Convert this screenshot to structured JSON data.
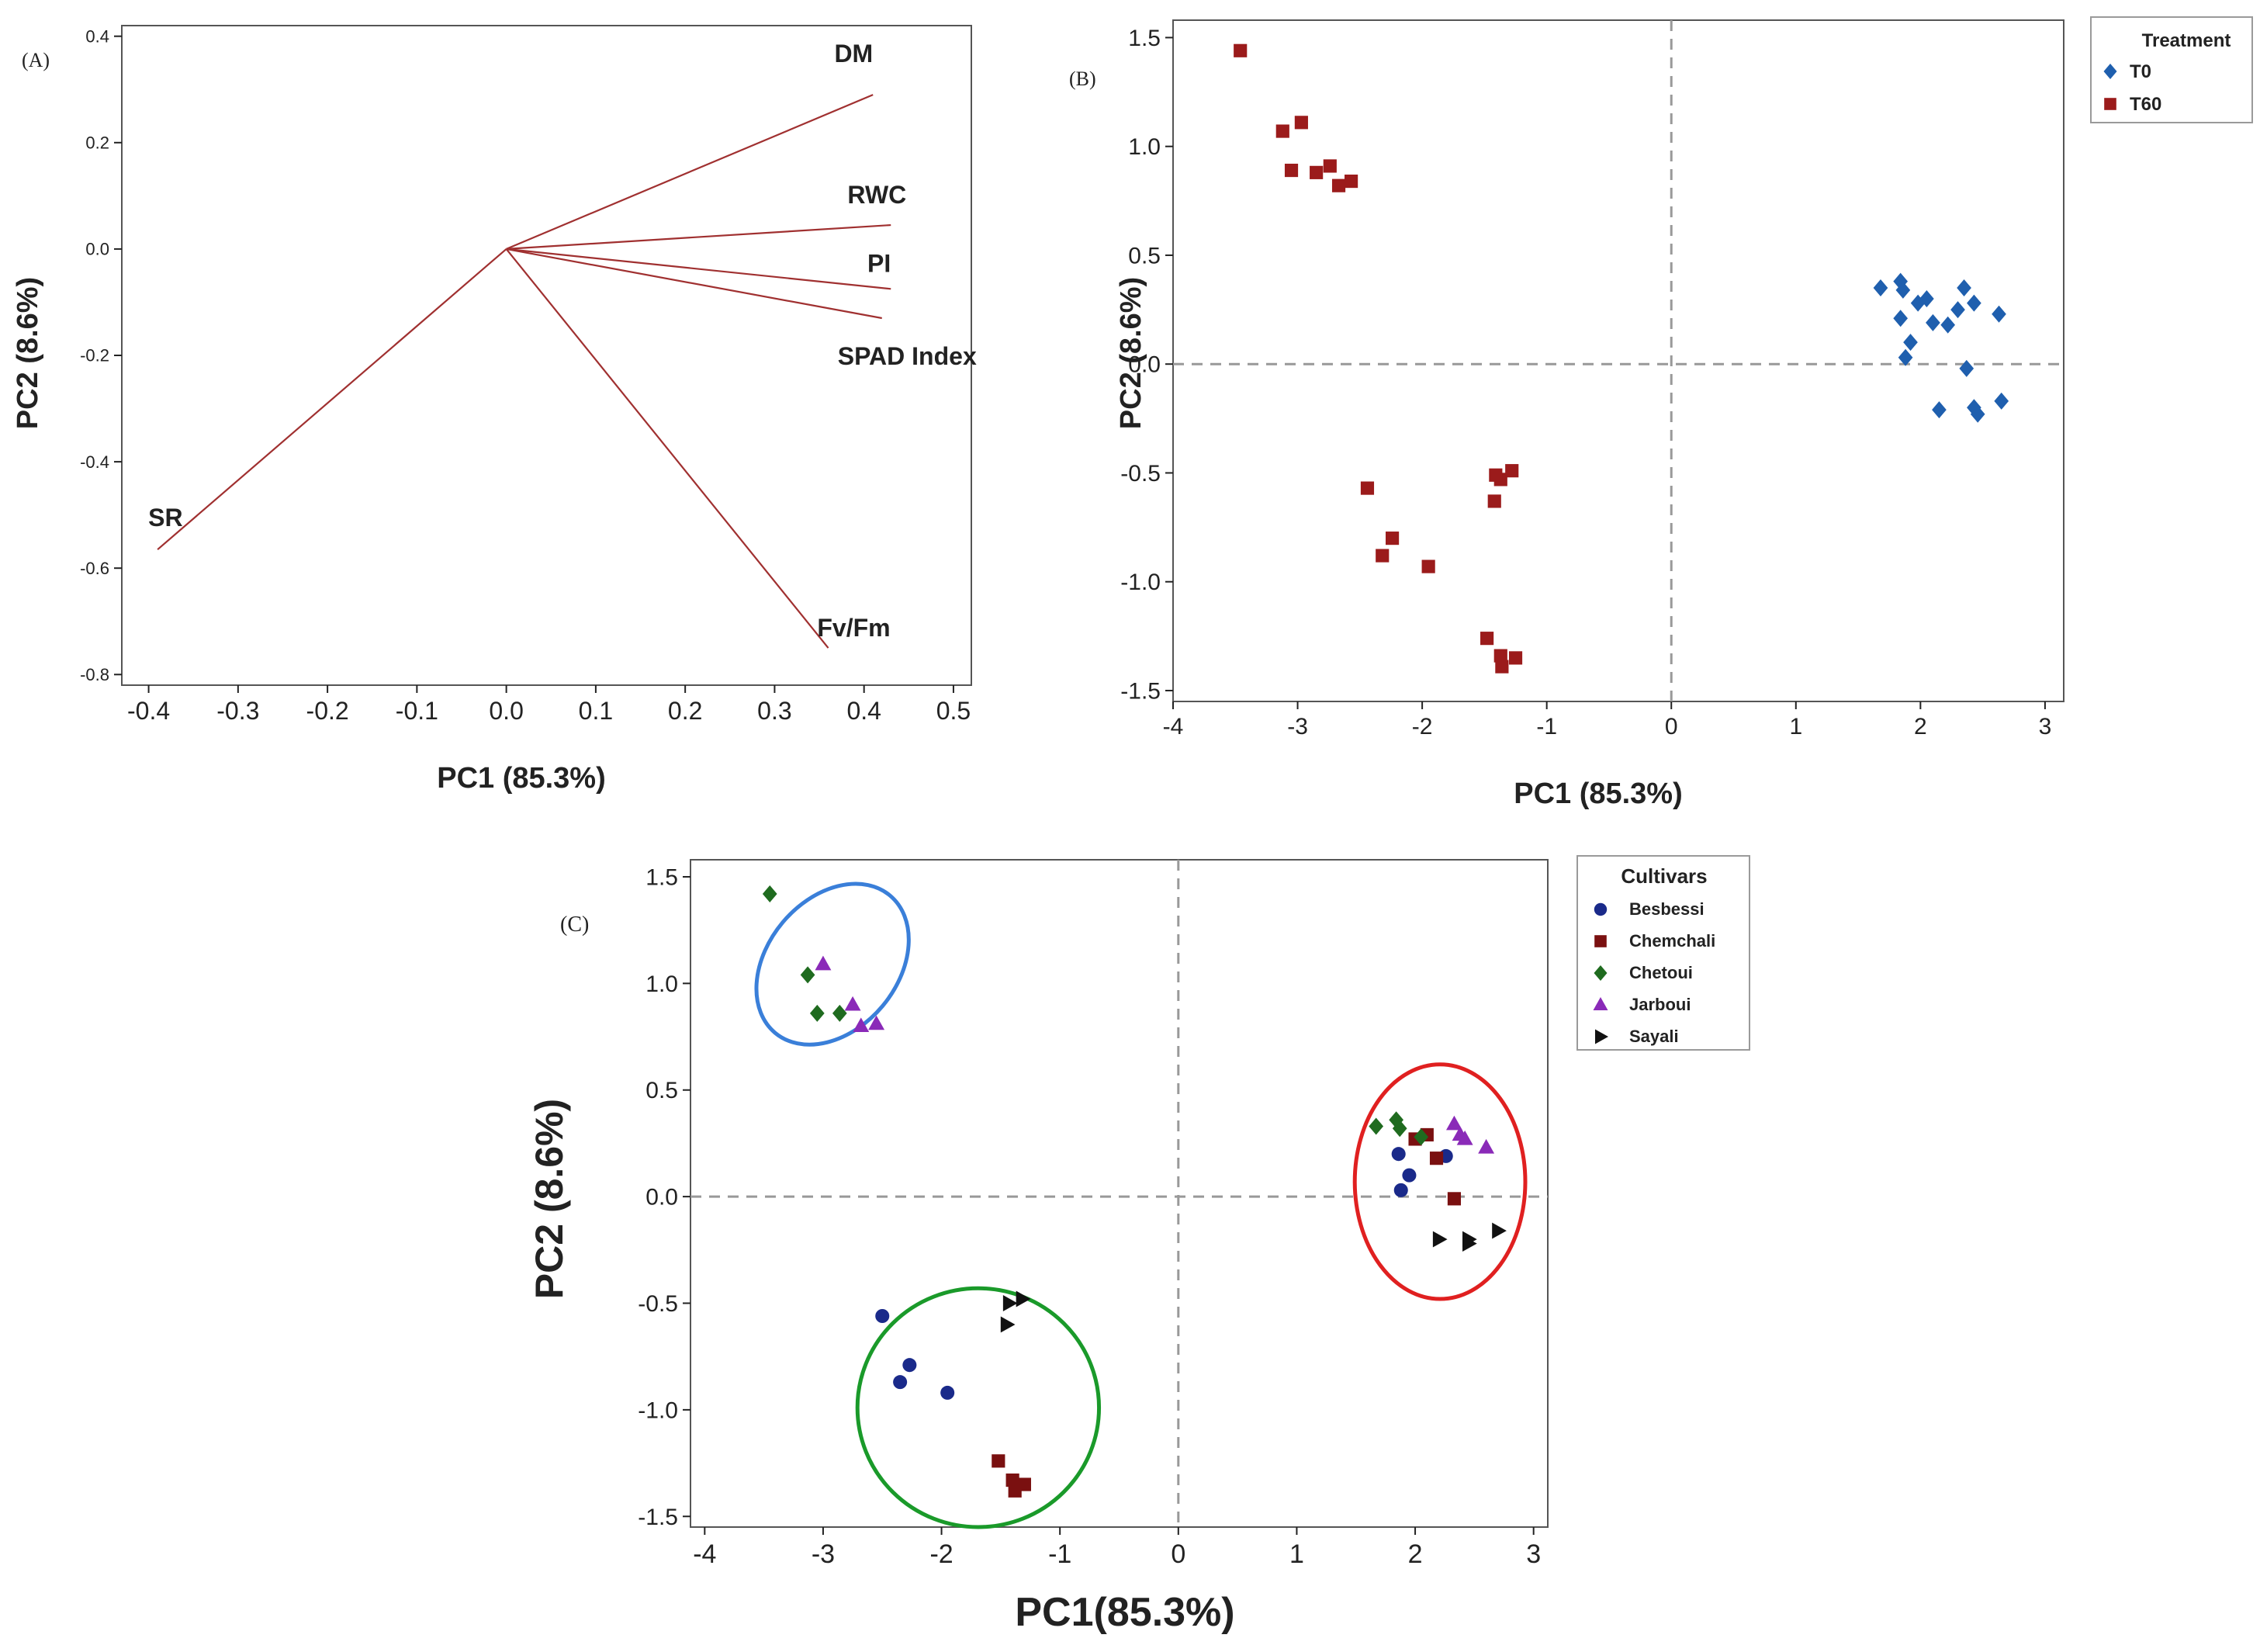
{
  "colors": {
    "loading_line": "#a03030",
    "t0": "#1f5fae",
    "t60": "#9b1b1b",
    "besbessi": "#1a2a8a",
    "chemchali": "#7a1010",
    "chetoui": "#1f6b1f",
    "jarboui": "#8a2ab8",
    "sayali": "#111111",
    "ellipse_blue": "#3a7fd9",
    "ellipse_green": "#1a9a2a",
    "ellipse_red": "#e02020"
  },
  "chart_data": [
    {
      "type": "biplot",
      "panel_label": "(A)",
      "xlabel": "PC1 (85.3%)",
      "ylabel": "PC2 (8.6%)",
      "xlim": [
        -0.43,
        0.52
      ],
      "ylim": [
        -0.82,
        0.42
      ],
      "xticks": [
        "-0.4",
        "-0.3",
        "-0.2",
        "-0.1",
        "0.0",
        "0.1",
        "0.2",
        "0.3",
        "0.4",
        "0.5"
      ],
      "yticks": [
        "0.4",
        "0.2",
        "0.0",
        "-0.2",
        "-0.4",
        "-0.6",
        "-0.8"
      ],
      "loadings": [
        {
          "name": "DM",
          "pc1": 0.41,
          "pc2": 0.29
        },
        {
          "name": "RWC",
          "pc1": 0.43,
          "pc2": 0.045
        },
        {
          "name": "PI",
          "pc1": 0.43,
          "pc2": -0.075
        },
        {
          "name": "SPAD Index",
          "pc1": 0.42,
          "pc2": -0.13
        },
        {
          "name": "Fv/Fm",
          "pc1": 0.36,
          "pc2": -0.75
        },
        {
          "name": "SR",
          "pc1": -0.39,
          "pc2": -0.565
        }
      ]
    },
    {
      "type": "scatter",
      "panel_label": "(B)",
      "xlabel": "PC1 (85.3%)",
      "ylabel": "PC2 (8.6%)",
      "xlim": [
        -4.0,
        3.15
      ],
      "ylim": [
        -1.55,
        1.58
      ],
      "xticks": [
        "-4",
        "-3",
        "-2",
        "-1",
        "0",
        "1",
        "2",
        "3"
      ],
      "yticks": [
        "1.5",
        "1.0",
        "0.5",
        "0.0",
        "-0.5",
        "-1.0",
        "-1.5"
      ],
      "legend_title": "Treatment",
      "legend_position": "top-right",
      "series": [
        {
          "name": "T0",
          "marker": "diamond",
          "color_key": "t0",
          "points": [
            [
              1.68,
              0.35
            ],
            [
              1.84,
              0.38
            ],
            [
              1.86,
              0.34
            ],
            [
              1.84,
              0.21
            ],
            [
              1.92,
              0.1
            ],
            [
              1.88,
              0.03
            ],
            [
              1.98,
              0.28
            ],
            [
              2.05,
              0.3
            ],
            [
              2.1,
              0.19
            ],
            [
              2.22,
              0.18
            ],
            [
              2.3,
              0.25
            ],
            [
              2.35,
              0.35
            ],
            [
              2.43,
              0.28
            ],
            [
              2.63,
              0.23
            ],
            [
              2.37,
              -0.02
            ],
            [
              2.15,
              -0.21
            ],
            [
              2.43,
              -0.2
            ],
            [
              2.46,
              -0.23
            ],
            [
              2.65,
              -0.17
            ]
          ]
        },
        {
          "name": "T60",
          "marker": "square",
          "color_key": "t60",
          "points": [
            [
              -3.46,
              1.44
            ],
            [
              -3.12,
              1.07
            ],
            [
              -2.97,
              1.11
            ],
            [
              -3.05,
              0.89
            ],
            [
              -2.85,
              0.88
            ],
            [
              -2.74,
              0.91
            ],
            [
              -2.67,
              0.82
            ],
            [
              -2.57,
              0.84
            ],
            [
              -2.44,
              -0.57
            ],
            [
              -2.24,
              -0.8
            ],
            [
              -2.32,
              -0.88
            ],
            [
              -1.95,
              -0.93
            ],
            [
              -1.42,
              -0.63
            ],
            [
              -1.37,
              -0.53
            ],
            [
              -1.41,
              -0.51
            ],
            [
              -1.28,
              -0.49
            ],
            [
              -1.48,
              -1.26
            ],
            [
              -1.37,
              -1.34
            ],
            [
              -1.25,
              -1.35
            ],
            [
              -1.36,
              -1.39
            ]
          ]
        }
      ]
    },
    {
      "type": "scatter",
      "panel_label": "(C)",
      "xlabel": "PC1(85.3%)",
      "ylabel": "PC2 (8.6%)",
      "xlim": [
        -4.12,
        3.12
      ],
      "ylim": [
        -1.55,
        1.58
      ],
      "xticks": [
        "-4",
        "-3",
        "-2",
        "-1",
        "0",
        "1",
        "2",
        "3"
      ],
      "yticks": [
        "1.5",
        "1.0",
        "0.5",
        "0.0",
        "-0.5",
        "-1.0",
        "-1.5"
      ],
      "legend_title": "Cultivars",
      "legend_position": "top-right",
      "series": [
        {
          "name": "Besbessi",
          "marker": "circle",
          "color_key": "besbessi",
          "points": [
            [
              1.86,
              0.2
            ],
            [
              1.95,
              0.1
            ],
            [
              1.88,
              0.03
            ],
            [
              2.26,
              0.19
            ],
            [
              -2.5,
              -0.56
            ],
            [
              -2.27,
              -0.79
            ],
            [
              -2.35,
              -0.87
            ],
            [
              -1.95,
              -0.92
            ]
          ]
        },
        {
          "name": "Chemchali",
          "marker": "square",
          "color_key": "chemchali",
          "points": [
            [
              2.0,
              0.27
            ],
            [
              2.1,
              0.29
            ],
            [
              2.18,
              0.18
            ],
            [
              2.33,
              -0.01
            ],
            [
              -1.52,
              -1.24
            ],
            [
              -1.4,
              -1.33
            ],
            [
              -1.3,
              -1.35
            ],
            [
              -1.38,
              -1.38
            ]
          ]
        },
        {
          "name": "Chetoui",
          "marker": "diamond",
          "color_key": "chetoui",
          "points": [
            [
              -3.45,
              1.42
            ],
            [
              -3.13,
              1.04
            ],
            [
              -3.05,
              0.86
            ],
            [
              -2.86,
              0.86
            ],
            [
              1.67,
              0.33
            ],
            [
              1.84,
              0.36
            ],
            [
              1.87,
              0.32
            ],
            [
              2.05,
              0.28
            ]
          ]
        },
        {
          "name": "Jarboui",
          "marker": "triangle-up",
          "color_key": "jarboui",
          "points": [
            [
              -3.0,
              1.09
            ],
            [
              -2.75,
              0.9
            ],
            [
              -2.68,
              0.8
            ],
            [
              -2.55,
              0.81
            ],
            [
              2.33,
              0.34
            ],
            [
              2.38,
              0.29
            ],
            [
              2.42,
              0.27
            ],
            [
              2.6,
              0.23
            ]
          ]
        },
        {
          "name": "Sayali",
          "marker": "triangle-right",
          "color_key": "sayali",
          "points": [
            [
              -1.43,
              -0.5
            ],
            [
              -1.32,
              -0.48
            ],
            [
              -1.45,
              -0.6
            ],
            [
              2.2,
              -0.2
            ],
            [
              2.45,
              -0.2
            ],
            [
              2.45,
              -0.22
            ],
            [
              2.7,
              -0.16
            ]
          ]
        }
      ],
      "groupings": [
        {
          "name": "ellipse-blue",
          "color_key": "ellipse_blue",
          "cx": -2.92,
          "cy": 1.09,
          "rx": 0.55,
          "ry": 0.42,
          "rotation_deg": 40
        },
        {
          "name": "ellipse-green",
          "color_key": "ellipse_green",
          "cx": -1.69,
          "cy": -0.99,
          "rx": 1.02,
          "ry": 0.56,
          "rotation_deg": 0
        },
        {
          "name": "ellipse-red",
          "color_key": "ellipse_red",
          "cx": 2.21,
          "cy": 0.07,
          "rx": 0.72,
          "ry": 0.55,
          "rotation_deg": 0
        }
      ]
    }
  ]
}
